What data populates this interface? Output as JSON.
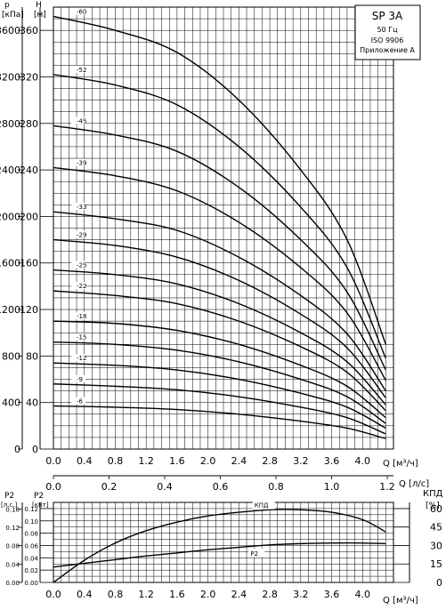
{
  "title_box": {
    "model": "SP 3A",
    "freq": "50 Гц",
    "standard": "ISO 9906",
    "appendix": "Приложение А"
  },
  "axis_labels": {
    "p_top": "p",
    "p_unit": "[кПа]",
    "h_top": "H",
    "h_unit": "[м]",
    "q_m3h": "Q [м³/ч]",
    "q_ls": "Q [л/с]",
    "q_m3h_bottom": "Q [м³/ч]",
    "p2_hp_top": "P2",
    "p2_hp_unit": "[л.с.]",
    "p2_kw_top": "P2",
    "p2_kw_unit": "[кВт]",
    "eta_top": "КПД",
    "eta_unit": "[%]"
  },
  "chart_data": [
    {
      "type": "line",
      "title": "SP 3A",
      "xlabel": "Q [м³/ч]",
      "ylabel": "H [м]",
      "xlim": [
        0,
        4.4
      ],
      "ylim": [
        0,
        380
      ],
      "x_ticks": [
        "0.0",
        "0.4",
        "0.8",
        "1.2",
        "1.6",
        "2.0",
        "2.4",
        "2.8",
        "3.2",
        "3.6",
        "4.0"
      ],
      "y_ticks_h": [
        "0",
        "40",
        "80",
        "120",
        "160",
        "200",
        "240",
        "280",
        "320",
        "360"
      ],
      "y_ticks_p": [
        "0",
        "400",
        "800",
        "1200",
        "1600",
        "2000",
        "2400",
        "2800",
        "3200",
        "3600"
      ],
      "x2_ticks": [
        "0.0",
        "0.2",
        "0.4",
        "0.6",
        "0.8",
        "1.0",
        "1.2"
      ],
      "series": [
        {
          "name": "-6",
          "x": [
            0,
            0.8,
            1.6,
            2.4,
            3.2,
            3.8,
            4.3
          ],
          "y": [
            37,
            36,
            34,
            30,
            24,
            18,
            9
          ]
        },
        {
          "name": "-9",
          "x": [
            0,
            0.8,
            1.6,
            2.4,
            3.2,
            3.8,
            4.3
          ],
          "y": [
            56,
            54,
            51,
            45,
            36,
            27,
            13
          ]
        },
        {
          "name": "-12",
          "x": [
            0,
            0.8,
            1.6,
            2.4,
            3.2,
            3.8,
            4.3
          ],
          "y": [
            74,
            72,
            68,
            60,
            48,
            36,
            18
          ]
        },
        {
          "name": "-15",
          "x": [
            0,
            0.8,
            1.6,
            2.4,
            3.2,
            3.8,
            4.3
          ],
          "y": [
            92,
            90,
            85,
            75,
            60,
            45,
            22
          ]
        },
        {
          "name": "-18",
          "x": [
            0,
            0.8,
            1.6,
            2.4,
            3.2,
            3.8,
            4.3
          ],
          "y": [
            110,
            108,
            102,
            90,
            72,
            54,
            27
          ]
        },
        {
          "name": "-22",
          "x": [
            0,
            0.8,
            1.6,
            2.4,
            3.2,
            3.8,
            4.3
          ],
          "y": [
            136,
            132,
            125,
            110,
            88,
            66,
            33
          ]
        },
        {
          "name": "-25",
          "x": [
            0,
            0.8,
            1.6,
            2.4,
            3.2,
            3.8,
            4.3
          ],
          "y": [
            154,
            150,
            142,
            125,
            100,
            75,
            38
          ]
        },
        {
          "name": "-29",
          "x": [
            0,
            0.8,
            1.6,
            2.4,
            3.2,
            3.8,
            4.3
          ],
          "y": [
            180,
            175,
            165,
            145,
            116,
            87,
            44
          ]
        },
        {
          "name": "-33",
          "x": [
            0,
            0.8,
            1.6,
            2.4,
            3.2,
            3.8,
            4.3
          ],
          "y": [
            204,
            198,
            188,
            165,
            132,
            99,
            50
          ]
        },
        {
          "name": "-39",
          "x": [
            0,
            0.8,
            1.6,
            2.4,
            3.2,
            3.8,
            4.3
          ],
          "y": [
            242,
            235,
            222,
            195,
            156,
            117,
            59
          ]
        },
        {
          "name": "-45",
          "x": [
            0,
            0.8,
            1.6,
            2.4,
            3.2,
            3.8,
            4.3
          ],
          "y": [
            278,
            270,
            256,
            225,
            180,
            135,
            68
          ]
        },
        {
          "name": "-52",
          "x": [
            0,
            0.8,
            1.6,
            2.4,
            3.2,
            3.8,
            4.3
          ],
          "y": [
            322,
            313,
            296,
            260,
            208,
            156,
            78
          ]
        },
        {
          "name": "-60",
          "x": [
            0,
            0.8,
            1.6,
            2.4,
            3.2,
            3.8,
            4.3
          ],
          "y": [
            372,
            360,
            341,
            300,
            240,
            180,
            90
          ]
        }
      ]
    },
    {
      "type": "line",
      "xlabel": "Q [м³/ч]",
      "xlim": [
        0,
        4.4
      ],
      "ylim_kw": [
        0,
        0.13
      ],
      "ylim_eta": [
        0,
        65
      ],
      "x_ticks": [
        "0.0",
        "0.4",
        "0.8",
        "1.2",
        "1.6",
        "2.0",
        "2.4",
        "2.8",
        "3.2",
        "3.6",
        "4.0"
      ],
      "y_ticks_kw": [
        "0.00",
        "0.02",
        "0.04",
        "0.06",
        "0.08",
        "0.10",
        "0.12"
      ],
      "y_ticks_hp": [
        "0.00",
        "0.04",
        "0.08",
        "0.12",
        "0.16"
      ],
      "y_ticks_eta": [
        "0",
        "15",
        "30",
        "45",
        "60"
      ],
      "series": [
        {
          "name": "КПД",
          "axis": "eta",
          "x": [
            0,
            0.4,
            0.8,
            1.2,
            1.6,
            2.0,
            2.4,
            2.8,
            3.2,
            3.6,
            4.0,
            4.3
          ],
          "y": [
            0,
            18,
            32,
            42,
            49,
            54,
            57,
            59,
            59,
            57,
            51,
            41
          ]
        },
        {
          "name": "P2",
          "axis": "kw",
          "x": [
            0,
            0.4,
            0.8,
            1.2,
            1.6,
            2.0,
            2.4,
            2.8,
            3.2,
            3.6,
            4.0,
            4.3
          ],
          "y": [
            0.025,
            0.031,
            0.037,
            0.043,
            0.048,
            0.053,
            0.057,
            0.061,
            0.063,
            0.064,
            0.064,
            0.063
          ]
        }
      ]
    }
  ]
}
